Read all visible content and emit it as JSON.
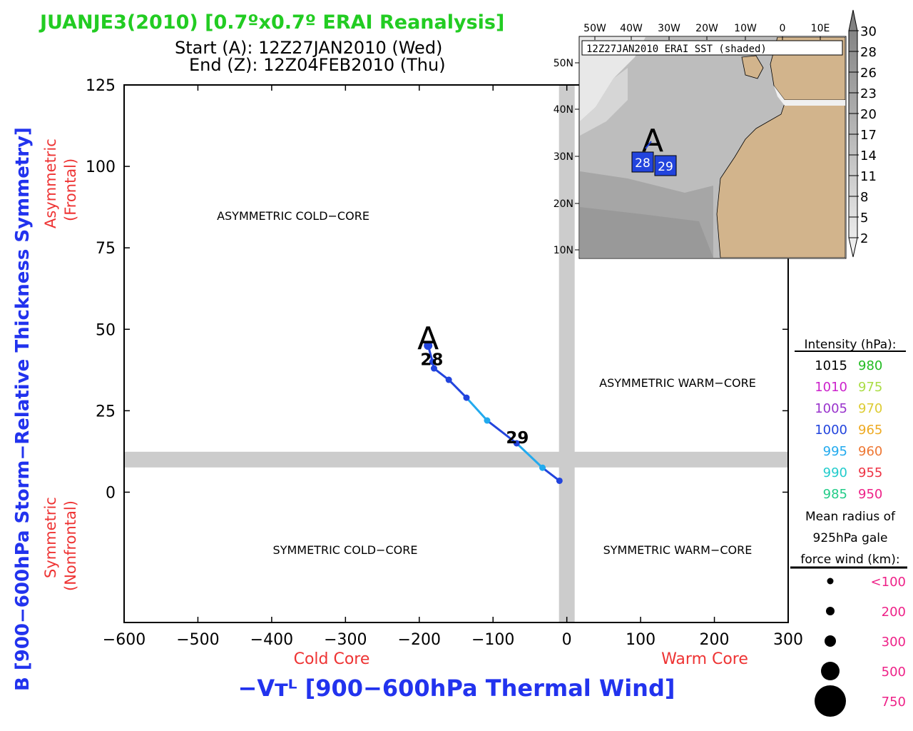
{
  "title": "JUANJE3(2010) [0.7ºx0.7º ERAI Reanalysis]",
  "start_line": "Start (A): 12Z27JAN2010 (Wed)",
  "end_line": "End (Z): 12Z04FEB2010 (Thu)",
  "colors": {
    "title": "#22cc22",
    "axis_blue": "#2233ee",
    "axis_red": "#ee3333",
    "grid_band": "#cccccc",
    "track_dark": "#2244dd",
    "track_light": "#22aaee",
    "land": "#d2b48c"
  },
  "chart_data": {
    "type": "line",
    "xlabel": "−Vᴛᴸ [900−600hPa Thermal Wind]",
    "ylabel": "B [900−600hPa Storm−Relative Thickness Symmetry]",
    "xlim": [
      -600,
      300
    ],
    "ylim": [
      -40,
      125
    ],
    "xticks": [
      -600,
      -500,
      -400,
      -300,
      -200,
      -100,
      0,
      100,
      200,
      300
    ],
    "xtick_labels": [
      "−600",
      "−500",
      "−400",
      "−300",
      "−200",
      "−100",
      "0",
      "100",
      "200",
      "300"
    ],
    "yticks": [
      125,
      100,
      75,
      50,
      25,
      0
    ],
    "x_under_labels": {
      "cold": "Cold Core",
      "warm": "Warm Core"
    },
    "y_side_labels": {
      "asym1": "Asymmetric",
      "asym2": "(Frontal)",
      "sym1": "Symmetric",
      "sym2": "(Nonfrontal)"
    },
    "threshold_x": 0,
    "threshold_y": 10,
    "quadrants": {
      "acc": "ASYMMETRIC COLD−CORE",
      "awc": "ASYMMETRIC WARM−CORE",
      "scc": "SYMMETRIC COLD−CORE",
      "swc": "SYMMETRIC WARM−CORE"
    },
    "series": [
      {
        "points": [
          {
            "x": -188,
            "y": 45
          },
          {
            "x": -182,
            "y": 40
          },
          {
            "x": -180,
            "y": 38
          },
          {
            "x": -160,
            "y": 34.5
          },
          {
            "x": -136,
            "y": 29
          },
          {
            "x": -108,
            "y": 22
          },
          {
            "x": -68,
            "y": 15
          },
          {
            "x": -33,
            "y": 7.5
          },
          {
            "x": -10,
            "y": 3.5
          }
        ]
      }
    ],
    "start_marker": {
      "label": "A",
      "x": -188,
      "y": 47
    },
    "day_labels": [
      {
        "label": "28",
        "x": -183,
        "y": 41
      },
      {
        "label": "29",
        "x": -67,
        "y": 17
      }
    ]
  },
  "inset": {
    "title": "12Z27JAN2010 ERAI SST (shaded)",
    "lon_labels": [
      "50W",
      "40W",
      "30W",
      "20W",
      "10W",
      "0",
      "10E"
    ],
    "lat_labels": [
      "50N",
      "40N",
      "30N",
      "20N",
      "10N"
    ],
    "colorbar_labels": [
      "30",
      "28",
      "26",
      "23",
      "20",
      "17",
      "14",
      "11",
      "8",
      "5",
      "2"
    ],
    "start_marker": "A",
    "day_labels": [
      "28",
      "29"
    ]
  },
  "legend": {
    "intensity_title": "Intensity (hPa):",
    "intensity_pairs": [
      {
        "left": "1015",
        "left_color": "#000000",
        "right": "980",
        "right_color": "#22bb22"
      },
      {
        "left": "1010",
        "left_color": "#cc22cc",
        "right": "975",
        "right_color": "#aadd44"
      },
      {
        "left": "1005",
        "left_color": "#9933cc",
        "right": "970",
        "right_color": "#ddcc33"
      },
      {
        "left": "1000",
        "left_color": "#2244dd",
        "right": "965",
        "right_color": "#eeaa22"
      },
      {
        "left": "995",
        "left_color": "#22aaee",
        "right": "960",
        "right_color": "#ee7733"
      },
      {
        "left": "990",
        "left_color": "#22cccc",
        "right": "955",
        "right_color": "#ee3344"
      },
      {
        "left": "985",
        "left_color": "#22cc88",
        "right": "950",
        "right_color": "#ee2288"
      }
    ],
    "radius_title_lines": [
      "Mean radius of",
      "925hPa gale",
      "force wind (km):"
    ],
    "radius_items": [
      {
        "label": "<100"
      },
      {
        "label": "200"
      },
      {
        "label": "300"
      },
      {
        "label": "500"
      },
      {
        "label": "750"
      }
    ]
  }
}
